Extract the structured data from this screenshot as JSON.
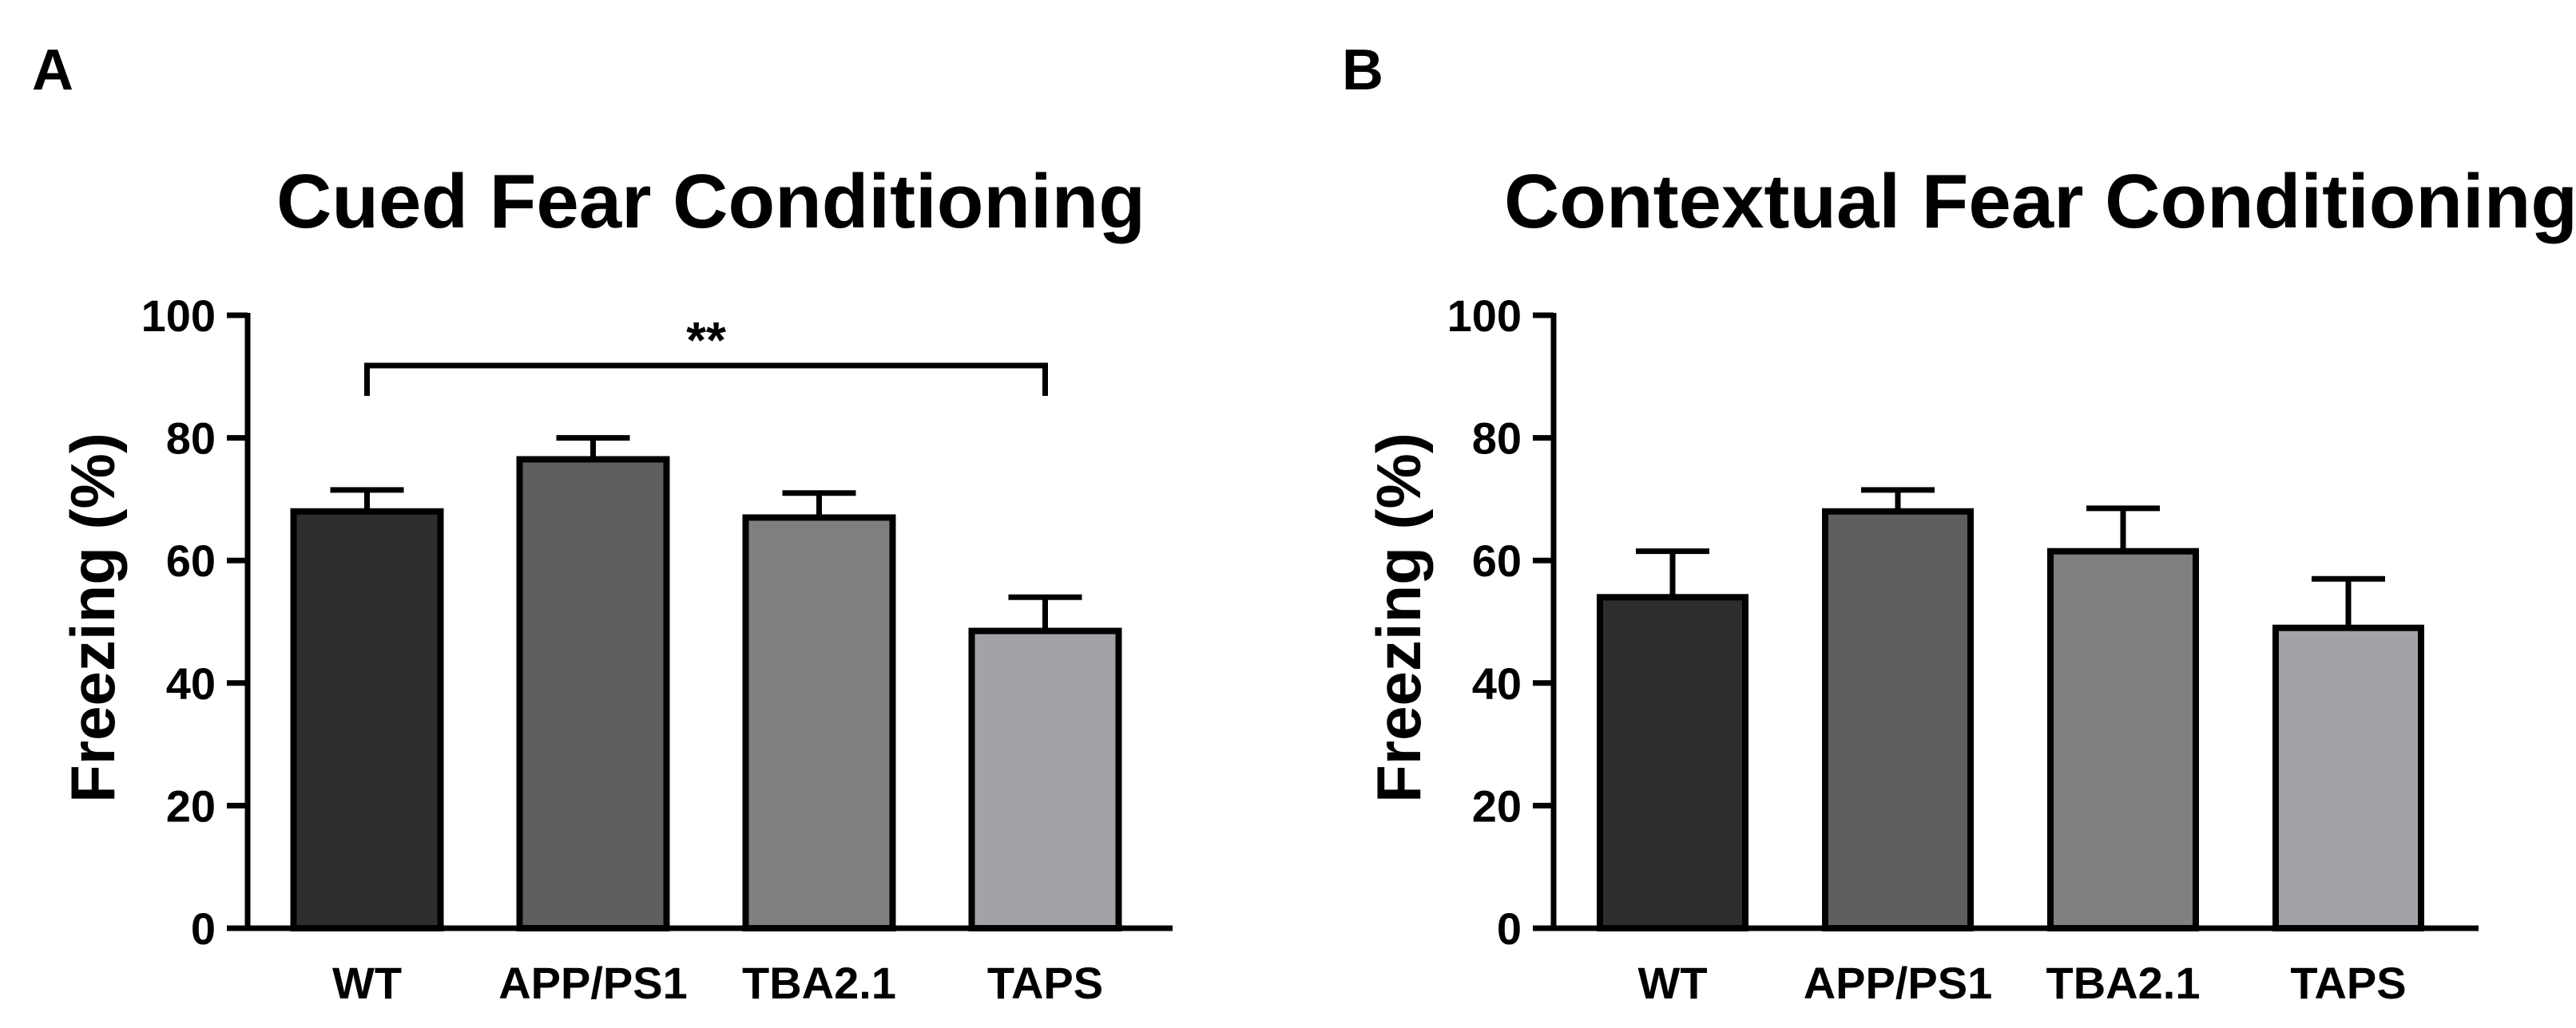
{
  "panels": [
    {
      "label": "A",
      "chart_data": {
        "type": "bar",
        "title": "Cued Fear Conditioning",
        "xlabel": "",
        "ylabel": "Freezing (%)",
        "categories": [
          "WT",
          "APP/PS1",
          "TBA2.1",
          "TAPS"
        ],
        "values": [
          68,
          76.5,
          67,
          48.5
        ],
        "errors": [
          3.5,
          3.5,
          4,
          5.5
        ],
        "colors": [
          "#2e2e2e",
          "#5e5e5e",
          "#7f7f7f",
          "#a3a2a7"
        ],
        "ylim": [
          0,
          100
        ],
        "yticks": [
          0,
          20,
          40,
          60,
          80,
          100
        ],
        "significance": {
          "from": "WT",
          "to": "TAPS",
          "label": "**"
        }
      }
    },
    {
      "label": "B",
      "chart_data": {
        "type": "bar",
        "title": "Contextual Fear Conditioning",
        "xlabel": "",
        "ylabel": "Freezing (%)",
        "categories": [
          "WT",
          "APP/PS1",
          "TBA2.1",
          "TAPS"
        ],
        "values": [
          54,
          68,
          61.5,
          49
        ],
        "errors": [
          7.5,
          3.5,
          7,
          8
        ],
        "colors": [
          "#2e2e2e",
          "#5e5e5e",
          "#7f7f7f",
          "#a3a2a7"
        ],
        "ylim": [
          0,
          100
        ],
        "yticks": [
          0,
          20,
          40,
          60,
          80,
          100
        ],
        "significance": null
      }
    }
  ]
}
